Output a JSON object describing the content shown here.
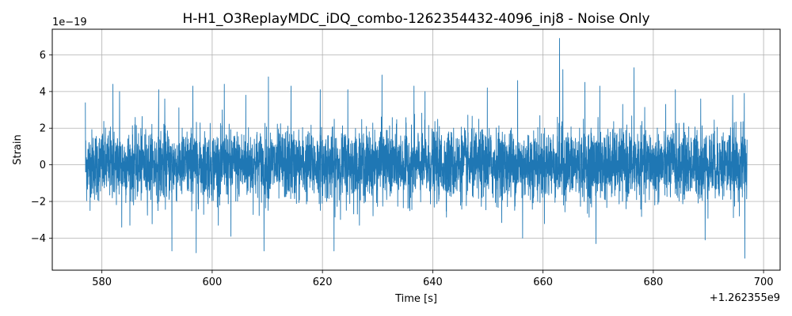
{
  "chart_data": {
    "type": "line",
    "title": "H-H1_O3ReplayMDC_iDQ_combo-1262354432-4096_inj8 - Noise Only",
    "xlabel": "Time [s]",
    "ylabel": "Strain",
    "x_offset_label": "+1.262355e9",
    "y_exponent_label": "1e−19",
    "x_range": [
      577,
      697
    ],
    "xlim": [
      571,
      703
    ],
    "ylim": [
      -5.75,
      7.4
    ],
    "x_ticks": [
      580,
      600,
      620,
      640,
      660,
      680,
      700
    ],
    "x_tick_labels": [
      "580",
      "600",
      "620",
      "640",
      "660",
      "680",
      "700"
    ],
    "y_ticks": [
      -4,
      -2,
      0,
      2,
      4,
      6
    ],
    "y_tick_labels": [
      "−4",
      "−2",
      "0",
      "2",
      "4",
      "6"
    ],
    "grid": true,
    "series": [
      {
        "color": "#1f77b4",
        "approx_min": -5.1,
        "approx_max": 6.9,
        "peaks": [
          {
            "x": 577.0,
            "y": 3.4
          },
          {
            "x": 582.0,
            "y": 4.4
          },
          {
            "x": 583.2,
            "y": 4.0
          },
          {
            "x": 583.6,
            "y": -3.4
          },
          {
            "x": 590.3,
            "y": 4.1
          },
          {
            "x": 591.4,
            "y": 3.6
          },
          {
            "x": 592.7,
            "y": -4.7
          },
          {
            "x": 596.5,
            "y": 4.3
          },
          {
            "x": 597.1,
            "y": -4.8
          },
          {
            "x": 602.2,
            "y": 4.4
          },
          {
            "x": 603.4,
            "y": -3.9
          },
          {
            "x": 606.1,
            "y": 3.8
          },
          {
            "x": 609.4,
            "y": -4.7
          },
          {
            "x": 610.2,
            "y": 4.8
          },
          {
            "x": 614.3,
            "y": 4.3
          },
          {
            "x": 619.6,
            "y": 4.1
          },
          {
            "x": 622.1,
            "y": -4.7
          },
          {
            "x": 624.6,
            "y": 4.1
          },
          {
            "x": 630.8,
            "y": 4.9
          },
          {
            "x": 636.6,
            "y": 4.3
          },
          {
            "x": 638.6,
            "y": 4.0
          },
          {
            "x": 649.9,
            "y": 4.2
          },
          {
            "x": 655.4,
            "y": 4.6
          },
          {
            "x": 656.3,
            "y": -4.0
          },
          {
            "x": 663.0,
            "y": 6.9
          },
          {
            "x": 663.6,
            "y": 5.2
          },
          {
            "x": 667.6,
            "y": 4.5
          },
          {
            "x": 669.6,
            "y": -4.3
          },
          {
            "x": 670.3,
            "y": 4.3
          },
          {
            "x": 676.5,
            "y": 5.3
          },
          {
            "x": 684.0,
            "y": 4.1
          },
          {
            "x": 688.6,
            "y": 3.6
          },
          {
            "x": 689.4,
            "y": -4.1
          },
          {
            "x": 694.4,
            "y": 3.8
          },
          {
            "x": 696.5,
            "y": 3.9
          },
          {
            "x": 696.6,
            "y": -5.1
          }
        ]
      }
    ]
  }
}
